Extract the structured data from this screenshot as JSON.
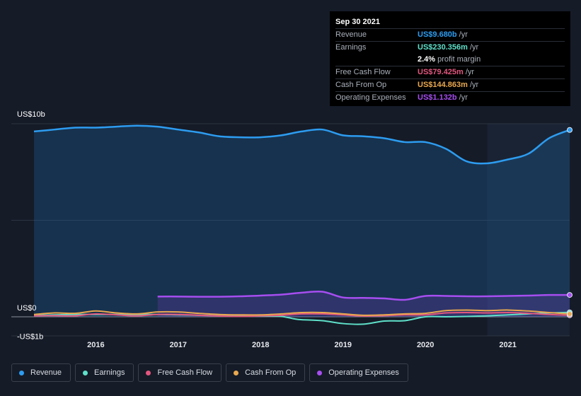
{
  "tooltip": {
    "date": "Sep 30 2021",
    "rows": [
      {
        "label": "Revenue",
        "value": "US$9.680b",
        "unit": "/yr",
        "color": "#2d9cf0"
      },
      {
        "label": "Earnings",
        "value": "US$230.356m",
        "unit": "/yr",
        "color": "#5fe0c9"
      },
      {
        "label": "",
        "value": "2.4%",
        "unit": "profit margin",
        "color": "#ffffff"
      },
      {
        "label": "Free Cash Flow",
        "value": "US$79.425m",
        "unit": "/yr",
        "color": "#e2577f"
      },
      {
        "label": "Cash From Op",
        "value": "US$144.863m",
        "unit": "/yr",
        "color": "#e9a84f"
      },
      {
        "label": "Operating Expenses",
        "value": "US$1.132b",
        "unit": "/yr",
        "color": "#a64ef0"
      }
    ]
  },
  "legend": [
    {
      "label": "Revenue",
      "color": "#2d9cf0"
    },
    {
      "label": "Earnings",
      "color": "#5fe0c9"
    },
    {
      "label": "Free Cash Flow",
      "color": "#e2577f"
    },
    {
      "label": "Cash From Op",
      "color": "#e9a84f"
    },
    {
      "label": "Operating Expenses",
      "color": "#a64ef0"
    }
  ],
  "chart_data": {
    "type": "line",
    "y_tick_labels": [
      "US$10b",
      "US$0",
      "-US$1b"
    ],
    "ylim": [
      -1,
      10
    ],
    "xlim": [
      2015.25,
      2021.75
    ],
    "x_ticks": [
      2016,
      2017,
      2018,
      2019,
      2020,
      2021
    ],
    "x_tick_labels": [
      "2016",
      "2017",
      "2018",
      "2019",
      "2020",
      "2021"
    ],
    "grid": true,
    "legend_position": "bottom",
    "highlight_start": 2020.75,
    "series": [
      {
        "name": "Revenue",
        "color": "#2d9cf0",
        "area": true,
        "x": [
          2015.25,
          2015.5,
          2015.75,
          2016.0,
          2016.25,
          2016.5,
          2016.75,
          2017.0,
          2017.25,
          2017.5,
          2017.75,
          2018.0,
          2018.25,
          2018.5,
          2018.75,
          2019.0,
          2019.25,
          2019.5,
          2019.75,
          2020.0,
          2020.25,
          2020.5,
          2020.75,
          2021.0,
          2021.25,
          2021.5,
          2021.75
        ],
        "y": [
          9.6,
          9.7,
          9.8,
          9.8,
          9.85,
          9.9,
          9.85,
          9.7,
          9.55,
          9.35,
          9.3,
          9.3,
          9.4,
          9.6,
          9.7,
          9.4,
          9.35,
          9.25,
          9.05,
          9.05,
          8.7,
          8.05,
          7.95,
          8.15,
          8.45,
          9.25,
          9.68
        ]
      },
      {
        "name": "Operating Expenses",
        "color": "#a64ef0",
        "area": true,
        "x": [
          2016.75,
          2017.0,
          2017.25,
          2017.5,
          2017.75,
          2018.0,
          2018.25,
          2018.5,
          2018.75,
          2019.0,
          2019.25,
          2019.5,
          2019.75,
          2020.0,
          2020.25,
          2020.5,
          2020.75,
          2021.0,
          2021.25,
          2021.5,
          2021.75
        ],
        "y": [
          1.05,
          1.05,
          1.04,
          1.04,
          1.06,
          1.1,
          1.15,
          1.25,
          1.3,
          1.0,
          0.98,
          0.95,
          0.88,
          1.08,
          1.08,
          1.06,
          1.06,
          1.08,
          1.1,
          1.13,
          1.132
        ]
      },
      {
        "name": "Earnings",
        "color": "#5fe0c9",
        "x": [
          2015.25,
          2015.5,
          2015.75,
          2016.0,
          2016.25,
          2016.5,
          2016.75,
          2017.0,
          2017.25,
          2017.5,
          2017.75,
          2018.0,
          2018.25,
          2018.4,
          2018.5,
          2018.75,
          2019.0,
          2019.25,
          2019.5,
          2019.75,
          2020.0,
          2020.25,
          2020.5,
          2020.75,
          2021.0,
          2021.25,
          2021.5,
          2021.75
        ],
        "y": [
          0.08,
          0.1,
          0.12,
          0.12,
          0.12,
          0.12,
          0.12,
          0.1,
          0.08,
          0.06,
          0.05,
          0.04,
          0.02,
          -0.1,
          -0.15,
          -0.2,
          -0.35,
          -0.38,
          -0.22,
          -0.2,
          0.0,
          0.0,
          0.02,
          0.05,
          0.1,
          0.15,
          0.2,
          0.23
        ]
      },
      {
        "name": "Free Cash Flow",
        "color": "#e2577f",
        "x": [
          2015.25,
          2015.5,
          2015.75,
          2016.0,
          2016.25,
          2016.5,
          2016.75,
          2017.0,
          2017.25,
          2017.5,
          2017.75,
          2018.0,
          2018.25,
          2018.5,
          2018.75,
          2019.0,
          2019.25,
          2019.5,
          2019.75,
          2020.0,
          2020.25,
          2020.5,
          2020.75,
          2021.0,
          2021.25,
          2021.5,
          2021.75
        ],
        "y": [
          0.05,
          0.06,
          0.05,
          0.15,
          0.1,
          0.05,
          0.12,
          0.12,
          0.08,
          0.04,
          0.02,
          0.05,
          0.08,
          0.15,
          0.15,
          0.1,
          0.04,
          0.06,
          0.1,
          0.1,
          0.2,
          0.22,
          0.2,
          0.22,
          0.18,
          0.12,
          0.08
        ]
      },
      {
        "name": "Cash From Op",
        "color": "#e9a84f",
        "x": [
          2015.25,
          2015.5,
          2015.75,
          2016.0,
          2016.25,
          2016.5,
          2016.75,
          2017.0,
          2017.25,
          2017.5,
          2017.75,
          2018.0,
          2018.25,
          2018.5,
          2018.75,
          2019.0,
          2019.25,
          2019.5,
          2019.75,
          2020.0,
          2020.25,
          2020.5,
          2020.75,
          2021.0,
          2021.25,
          2021.5,
          2021.75
        ],
        "y": [
          0.12,
          0.2,
          0.18,
          0.3,
          0.2,
          0.15,
          0.25,
          0.25,
          0.18,
          0.12,
          0.1,
          0.1,
          0.15,
          0.22,
          0.22,
          0.15,
          0.08,
          0.1,
          0.15,
          0.18,
          0.32,
          0.35,
          0.32,
          0.35,
          0.3,
          0.22,
          0.145
        ]
      }
    ]
  }
}
